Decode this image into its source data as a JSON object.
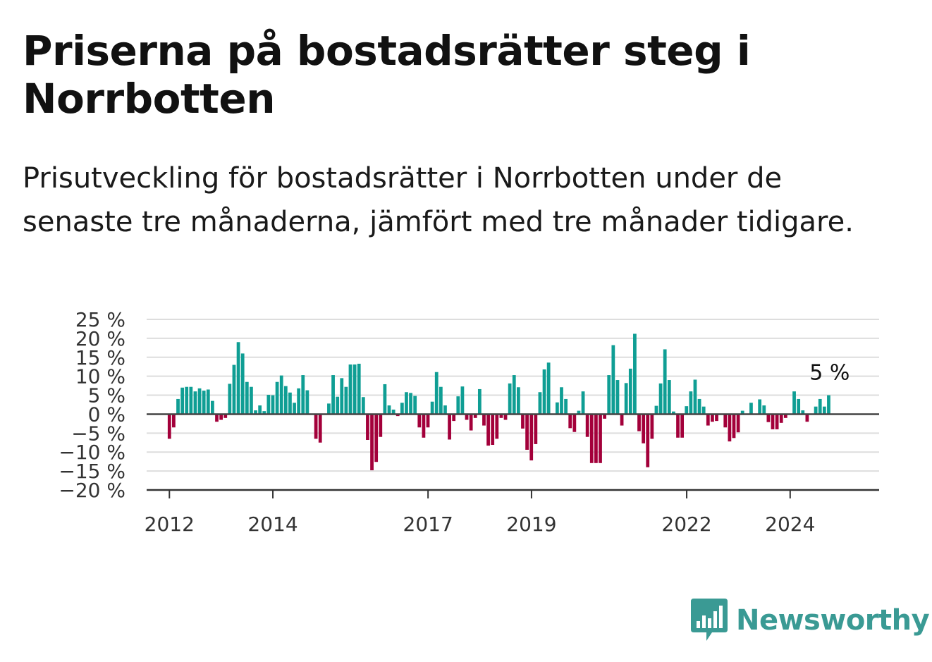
{
  "header": {
    "title": "Priserna på bostadsrätter steg i Norrbotten",
    "subtitle": "Prisutveckling för bostadsrätter i Norrbotten under de senaste tre månaderna, jämfört med tre månader tidigare."
  },
  "brand": {
    "name": "Newsworthy",
    "color": "#3a9a94"
  },
  "chart_data": {
    "type": "bar",
    "xlabel": "",
    "ylabel": "",
    "ylim": [
      -20,
      25
    ],
    "yticks": [
      25,
      20,
      15,
      10,
      5,
      0,
      -5,
      -10,
      -15,
      -20
    ],
    "ytick_labels": [
      "25 %",
      "20 %",
      "15 %",
      "10 %",
      "5 %",
      "0 %",
      "−5 %",
      "−10 %",
      "−15 %",
      "−20 %"
    ],
    "xtick_labels": [
      "2012",
      "2014",
      "2017",
      "2019",
      "2022",
      "2024"
    ],
    "xtick_values": [
      2012.0,
      2014.0,
      2017.0,
      2019.0,
      2022.0,
      2024.0
    ],
    "grid": true,
    "colors": {
      "positive": "#0f9e94",
      "negative": "#a3003a"
    },
    "annotation": {
      "label": "5 %",
      "value": 5
    },
    "series": [
      {
        "x_start": 2012.0,
        "step": 0.0833,
        "values": [
          -6.5,
          -3.5,
          4,
          7,
          7.2,
          7.2,
          6,
          6.8,
          6.2,
          6.5,
          3.5,
          -2,
          -1.5,
          -1,
          8,
          13,
          19,
          16,
          8.5,
          7.2,
          1,
          2.3,
          0.8,
          5.1,
          5,
          8.5,
          10.2,
          7.4,
          5.7,
          3,
          6.8,
          10.3,
          6.3,
          0,
          -6.5,
          -7.5,
          0,
          2.8,
          10.3,
          4.6,
          9.5,
          7.2,
          13.1,
          13.1,
          13.3,
          4.5,
          -6.8,
          -14.8,
          -12.6,
          -6,
          7.9,
          2.3,
          1.2,
          -0.5,
          3,
          5.8,
          5.6,
          4.8,
          -3.5,
          -6.2,
          -3.5,
          3.3,
          11.1,
          7.2,
          2.3,
          -6.7,
          -1.8,
          4.7,
          7.3,
          -1.5,
          -4.3,
          -1,
          6.6,
          -3,
          -8.3,
          -8.1,
          -6.5,
          -1,
          -1.5,
          8.1,
          10.3,
          7.1,
          -3.8,
          -9.4,
          -12.2,
          -7.9,
          5.8,
          11.8,
          13.6,
          0,
          3.1,
          7.1,
          4,
          -3.7,
          -4.7,
          0.9,
          6,
          -6,
          -12.9,
          -12.9,
          -12.9,
          -1.2,
          10.3,
          18.2,
          9,
          -3,
          8.2,
          12,
          21.2,
          -4.5,
          -7.7,
          -14,
          -6.5,
          2.2,
          8.1,
          17.1,
          9,
          0.7,
          -6.2,
          -6.2,
          2.1,
          6,
          9.1,
          4,
          2,
          -3,
          -2,
          -1.8,
          0,
          -3.5,
          -7.2,
          -6.3,
          -4.8,
          0.9,
          0,
          3,
          0,
          3.9,
          2.3,
          -2.1,
          -4,
          -4,
          -2.3,
          -1,
          0,
          6,
          4,
          1,
          -2,
          0,
          2,
          4,
          2,
          5
        ]
      }
    ]
  }
}
